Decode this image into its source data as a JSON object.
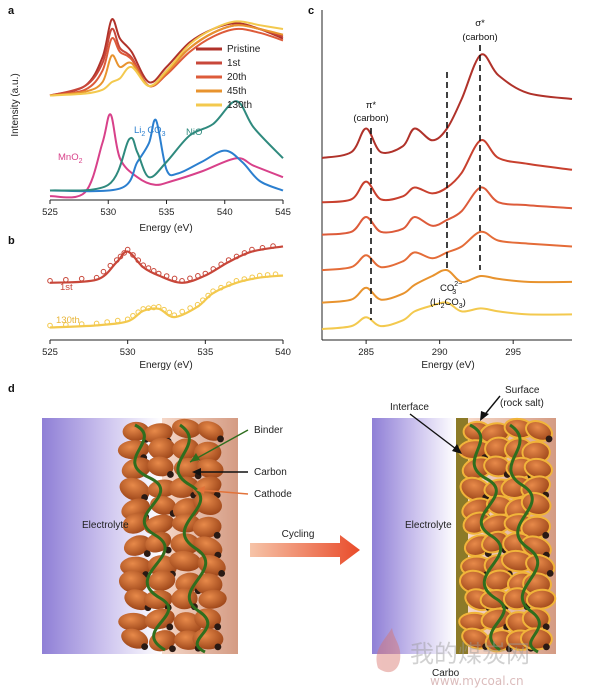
{
  "panels": {
    "a": {
      "label": "a",
      "ylabel": "Intensity (a.u.)",
      "xlabel": "Energy (eV)",
      "xticks": [
        "525",
        "530",
        "535",
        "540",
        "545"
      ],
      "legend": [
        "Pristine",
        "1st",
        "20th",
        "45th",
        "130th"
      ],
      "refs": {
        "mno2": "MnO",
        "mno2_sub": "2",
        "li2co3_a": "Li",
        "li2co3_sub": "2",
        "li2co3_b": "CO",
        "li2co3_sub2": "3",
        "nio": "NiO"
      }
    },
    "b": {
      "label": "b",
      "xlabel": "Energy (eV)",
      "xticks": [
        "525",
        "530",
        "535",
        "540"
      ],
      "series_labels": [
        "1st",
        "130th"
      ]
    },
    "c": {
      "label": "c",
      "xlabel": "Energy (eV)",
      "xticks": [
        "285",
        "290",
        "295"
      ],
      "pi_top": "π*",
      "pi_bottom": "(carbon)",
      "sigma_top": "σ*",
      "sigma_bottom": "(carbon)",
      "co3_main": "CO",
      "co3_sup": "2−",
      "co3_sub": "3",
      "co3_paren": "(Li",
      "co3_paren_sub": "2",
      "co3_paren_tail": "CO",
      "co3_paren_sub2": "3",
      "co3_paren_close": ")"
    },
    "d": {
      "label": "d",
      "left_labels": {
        "binder": "Binder",
        "carbon": "Carbon",
        "cathode": "Cathode",
        "electrolyte": "Electrolyte"
      },
      "arrow_label": "Cycling",
      "right_labels": {
        "interface": "Interface",
        "surface": "Surface",
        "surface_sub": "(rock salt)",
        "electrolyte": "Electrolyte",
        "carbon": "Carbo"
      }
    }
  },
  "watermark": {
    "cn": "我的煤炭网",
    "url": "www.mycoal.cn"
  },
  "colors": {
    "pristine": "#b0322a",
    "first": "#c8473a",
    "twentieth": "#dd5b3a",
    "fortyfifth": "#e8932e",
    "one_thirtieth": "#f3c94e",
    "mno2": "#d8418a",
    "li2co3": "#2b7fcf",
    "nio": "#2f8a7e",
    "binder": "#2f6e1e",
    "cathode_arrow": "#e2733a",
    "electrolyte": "#8a7bd0",
    "particle": "#c0612c",
    "interface": "#8c7a28"
  },
  "chart_data": [
    {
      "panel": "a",
      "type": "line",
      "xlabel": "Energy (eV)",
      "ylabel": "Intensity (a.u.)",
      "xlim": [
        525,
        545
      ],
      "series": [
        {
          "name": "Pristine",
          "x": [
            525,
            528,
            529.5,
            530.3,
            531,
            532,
            533.5,
            535,
            537,
            539,
            541,
            543,
            545
          ],
          "y": [
            0.55,
            0.6,
            0.75,
            0.95,
            0.85,
            0.78,
            0.62,
            0.7,
            0.83,
            0.9,
            0.93,
            0.9,
            0.85
          ]
        },
        {
          "name": "1st",
          "x": [
            525,
            528,
            529.5,
            530.3,
            531,
            532,
            533.5,
            535,
            537,
            539,
            541,
            543,
            545
          ],
          "y": [
            0.55,
            0.6,
            0.72,
            0.9,
            0.8,
            0.75,
            0.6,
            0.68,
            0.8,
            0.88,
            0.92,
            0.9,
            0.86
          ]
        },
        {
          "name": "20th",
          "x": [
            525,
            528,
            529.5,
            530.3,
            531,
            532,
            533.5,
            535,
            537,
            539,
            541,
            543,
            545
          ],
          "y": [
            0.55,
            0.58,
            0.68,
            0.85,
            0.78,
            0.74,
            0.6,
            0.66,
            0.78,
            0.86,
            0.9,
            0.88,
            0.84
          ]
        },
        {
          "name": "45th",
          "x": [
            525,
            528,
            529.5,
            530.3,
            531,
            532,
            533.5,
            535,
            537,
            539,
            541,
            543,
            545
          ],
          "y": [
            0.55,
            0.57,
            0.62,
            0.76,
            0.7,
            0.72,
            0.6,
            0.67,
            0.8,
            0.88,
            0.92,
            0.9,
            0.87
          ]
        },
        {
          "name": "130th",
          "x": [
            525,
            528,
            529.5,
            530.3,
            531,
            532,
            533.5,
            535,
            537,
            539,
            541,
            543,
            545
          ],
          "y": [
            0.55,
            0.56,
            0.58,
            0.62,
            0.64,
            0.7,
            0.6,
            0.68,
            0.82,
            0.9,
            0.94,
            0.92,
            0.9
          ]
        },
        {
          "name": "MnO2",
          "x": [
            525,
            528,
            529.5,
            530.2,
            531,
            532.5,
            534,
            535.5,
            538,
            541,
            542.5,
            545
          ],
          "y": [
            0.02,
            0.04,
            0.3,
            0.45,
            0.22,
            0.12,
            0.08,
            0.1,
            0.15,
            0.22,
            0.18,
            0.12
          ]
        },
        {
          "name": "Li2CO3",
          "x": [
            525,
            531,
            532.5,
            533.5,
            534.1,
            535,
            536,
            538,
            540,
            541.5,
            543,
            545
          ],
          "y": [
            0.05,
            0.06,
            0.2,
            0.3,
            0.42,
            0.16,
            0.14,
            0.2,
            0.26,
            0.2,
            0.1,
            0.05
          ]
        },
        {
          "name": "NiO",
          "x": [
            525,
            530,
            531.8,
            532.5,
            533.5,
            535,
            537,
            539,
            541,
            542.5,
            545
          ],
          "y": [
            0.05,
            0.08,
            0.32,
            0.25,
            0.12,
            0.2,
            0.34,
            0.4,
            0.52,
            0.38,
            0.22
          ]
        }
      ]
    },
    {
      "panel": "b",
      "type": "line",
      "xlabel": "Energy (eV)",
      "xlim": [
        525,
        540
      ],
      "series": [
        {
          "name": "1st",
          "x": [
            525,
            528,
            529.3,
            530,
            531,
            532,
            533.5,
            535,
            536.5,
            538,
            540
          ],
          "y": [
            0.55,
            0.58,
            0.75,
            0.85,
            0.7,
            0.62,
            0.55,
            0.62,
            0.75,
            0.85,
            0.9
          ]
        },
        {
          "name": "130th",
          "x": [
            525,
            528,
            530,
            531,
            532,
            533,
            534.5,
            535.5,
            537,
            538.5,
            540
          ],
          "y": [
            0.12,
            0.14,
            0.18,
            0.28,
            0.3,
            0.22,
            0.32,
            0.45,
            0.55,
            0.6,
            0.62
          ]
        }
      ]
    },
    {
      "panel": "c",
      "type": "line",
      "xlabel": "Energy (eV)",
      "xlim": [
        282,
        299
      ],
      "series": [
        {
          "name": "trace-1",
          "x": [
            282,
            284,
            285,
            286,
            287.5,
            288.3,
            289.5,
            290.5,
            291.5,
            292.8,
            294,
            296,
            299
          ],
          "y": [
            0.6,
            0.62,
            0.7,
            0.62,
            0.64,
            0.7,
            0.66,
            0.7,
            0.8,
            0.95,
            0.88,
            0.82,
            0.8
          ]
        },
        {
          "name": "trace-2",
          "x": [
            282,
            284,
            285,
            286,
            287.5,
            288.3,
            289.5,
            290.5,
            291.5,
            292.8,
            294,
            296,
            299
          ],
          "y": [
            0.45,
            0.46,
            0.52,
            0.46,
            0.47,
            0.5,
            0.48,
            0.5,
            0.55,
            0.66,
            0.6,
            0.58,
            0.56
          ]
        },
        {
          "name": "trace-3",
          "x": [
            282,
            284,
            285,
            286,
            287.5,
            288.3,
            289.5,
            290.5,
            291.5,
            292.8,
            294,
            296,
            299
          ],
          "y": [
            0.34,
            0.35,
            0.4,
            0.35,
            0.36,
            0.4,
            0.37,
            0.39,
            0.42,
            0.5,
            0.45,
            0.44,
            0.43
          ]
        },
        {
          "name": "trace-4",
          "x": [
            282,
            284,
            285,
            286,
            287.5,
            288.3,
            289.5,
            290.5,
            291.5,
            292.8,
            294,
            296,
            299
          ],
          "y": [
            0.22,
            0.23,
            0.27,
            0.23,
            0.25,
            0.28,
            0.26,
            0.28,
            0.3,
            0.35,
            0.32,
            0.31,
            0.3
          ]
        },
        {
          "name": "trace-5",
          "x": [
            282,
            284,
            285,
            286,
            287.5,
            288.3,
            289.5,
            290.5,
            291.5,
            292.8,
            294,
            296,
            299
          ],
          "y": [
            0.11,
            0.12,
            0.16,
            0.12,
            0.14,
            0.17,
            0.2,
            0.22,
            0.18,
            0.2,
            0.19,
            0.18,
            0.18
          ]
        },
        {
          "name": "trace-6",
          "x": [
            282,
            284,
            285,
            286,
            287.5,
            288.3,
            289.5,
            290.5,
            291.5,
            292.8,
            294,
            296,
            299
          ],
          "y": [
            0.02,
            0.03,
            0.06,
            0.03,
            0.05,
            0.08,
            0.1,
            0.11,
            0.08,
            0.09,
            0.08,
            0.07,
            0.07
          ]
        }
      ]
    }
  ]
}
